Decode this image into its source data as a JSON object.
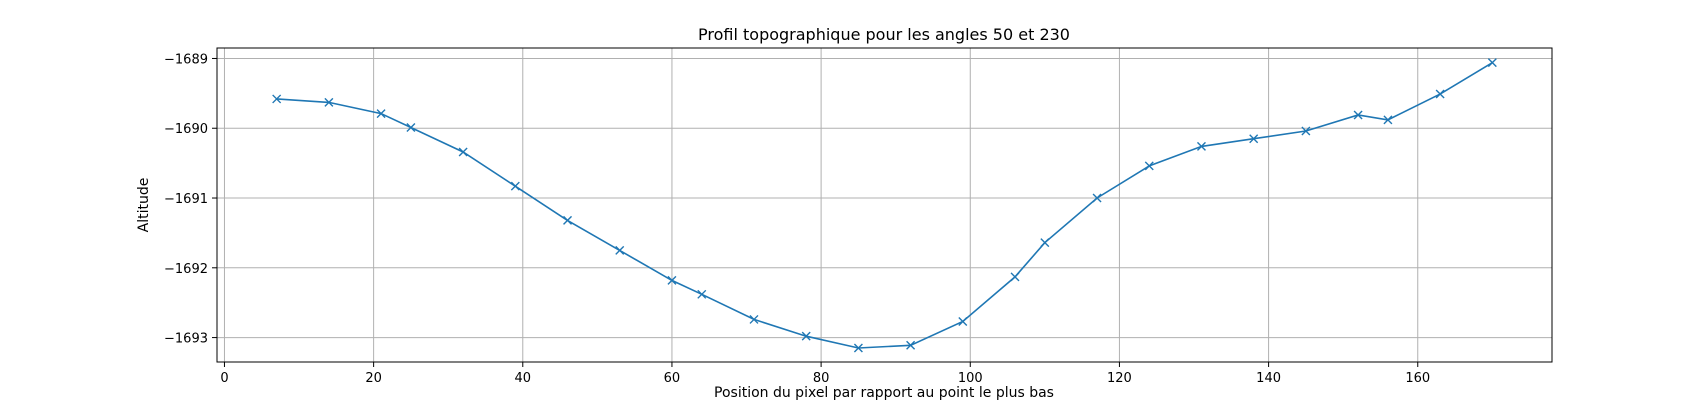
{
  "chart_data": {
    "type": "line",
    "title": "Profil topographique pour les angles 50 et 230",
    "xlabel": "Position du pixel par rapport au point le plus bas",
    "ylabel": "Altitude",
    "xlim": [
      -1,
      178
    ],
    "ylim": [
      -1693.35,
      -1688.85
    ],
    "x_ticks": [
      0,
      20,
      40,
      60,
      80,
      100,
      120,
      140,
      160
    ],
    "y_ticks": [
      -1689,
      -1690,
      -1691,
      -1692,
      -1693
    ],
    "grid": true,
    "marker": "x",
    "line_color": "#1f77b4",
    "series": [
      {
        "x": [
          7,
          14,
          21,
          25,
          32,
          39,
          46,
          53,
          60,
          64,
          71,
          78,
          85,
          92,
          99,
          106,
          110,
          117,
          124,
          131,
          138,
          145,
          152,
          156,
          163,
          170
        ],
        "y": [
          -1689.58,
          -1689.63,
          -1689.79,
          -1689.99,
          -1690.34,
          -1690.83,
          -1691.32,
          -1691.75,
          -1692.18,
          -1692.38,
          -1692.74,
          -1692.98,
          -1693.15,
          -1693.11,
          -1692.77,
          -1692.13,
          -1691.64,
          -1691.0,
          -1690.54,
          -1690.26,
          -1690.15,
          -1690.04,
          -1689.81,
          -1689.88,
          -1689.51,
          -1689.06
        ]
      }
    ]
  }
}
